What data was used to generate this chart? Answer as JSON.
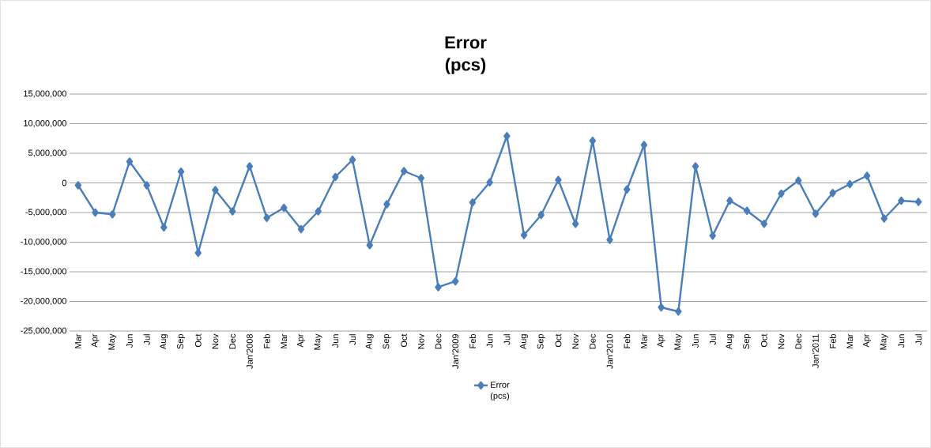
{
  "chart_data": {
    "type": "line",
    "title": "Error (pcs)",
    "categories": [
      "Mar",
      "Apr",
      "May",
      "Jun",
      "Jul",
      "Aug",
      "Sep",
      "Oct",
      "Nov",
      "Dec",
      "Jan'2008",
      "Feb",
      "Mar",
      "Apr",
      "May",
      "Jun",
      "Jul",
      "Aug",
      "Sep",
      "Oct",
      "Nov",
      "Dec",
      "Jan'2009",
      "Feb",
      "Jun",
      "Jul",
      "Aug",
      "Sep",
      "Oct",
      "Nov",
      "Dec",
      "Jan'2010",
      "Feb",
      "Mar",
      "Apr",
      "May",
      "Jun",
      "Jul",
      "Aug",
      "Sep",
      "Oct",
      "Nov",
      "Dec",
      "Jan'2011",
      "Feb",
      "Mar",
      "Apr",
      "May",
      "Jun",
      "Jul"
    ],
    "series": [
      {
        "name": "Error (pcs)",
        "color": "#4a7ebb",
        "values": [
          -400000,
          -5000000,
          -5300000,
          3600000,
          -400000,
          -7500000,
          1900000,
          -11800000,
          -1200000,
          -4800000,
          2800000,
          -5900000,
          -4200000,
          -7800000,
          -4800000,
          1000000,
          3900000,
          -10500000,
          -3600000,
          2000000,
          800000,
          -17600000,
          -16600000,
          -3300000,
          100000,
          7900000,
          -8800000,
          -5400000,
          500000,
          -6900000,
          7100000,
          -9600000,
          -1100000,
          6400000,
          -21000000,
          -21700000,
          2800000,
          -8900000,
          -3000000,
          -4700000,
          -6900000,
          -1800000,
          400000,
          -5200000,
          -1700000,
          -200000,
          1200000,
          -6000000,
          -3000000,
          -3200000
        ]
      }
    ],
    "ylim": [
      -25000000,
      15000000
    ],
    "yticks": [
      {
        "value": -25000000,
        "label": "-25,000,000"
      },
      {
        "value": -20000000,
        "label": "-20,000,000"
      },
      {
        "value": -15000000,
        "label": "-15,000,000"
      },
      {
        "value": -10000000,
        "label": "-10,000,000"
      },
      {
        "value": -5000000,
        "label": "-5,000,000"
      },
      {
        "value": 0,
        "label": "0"
      },
      {
        "value": 5000000,
        "label": "5,000,000"
      },
      {
        "value": 10000000,
        "label": "10,000,000"
      },
      {
        "value": 15000000,
        "label": "15,000,000"
      }
    ],
    "grid": "y",
    "legend": "bottom",
    "marker": "diamond",
    "line_style": "solid"
  }
}
